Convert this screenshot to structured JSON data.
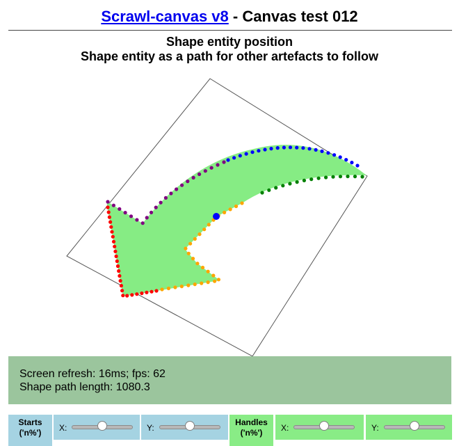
{
  "header": {
    "link_text": "Scrawl-canvas v8",
    "separator": " - ",
    "title": "Canvas test 012"
  },
  "subtitle": {
    "line1": "Shape entity position",
    "line2": "Shape entity as a path for other artefacts to follow"
  },
  "report": {
    "line1": "Screen refresh: 16ms; fps: 62",
    "line2": "Shape path length: 1080.3"
  },
  "controls": {
    "starts": {
      "label_line1": "Starts",
      "label_line2": "('n%')",
      "x_label": "X:",
      "y_label": "Y:"
    },
    "handles": {
      "label_line1": "Handles",
      "label_line2": "('n%')",
      "x_label": "X:",
      "y_label": "Y:"
    }
  },
  "colors": {
    "arrow_fill": "#86ec84",
    "start_dot": "#0000ff",
    "dot_series": [
      "#0000ff",
      "#008000",
      "#ffa500",
      "#ff0000",
      "#800080"
    ]
  }
}
